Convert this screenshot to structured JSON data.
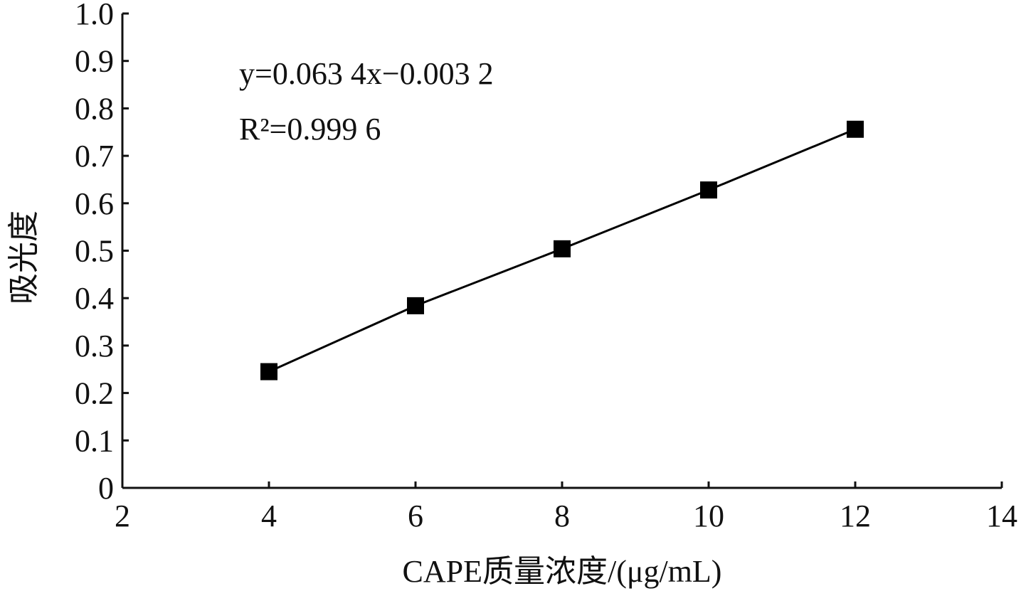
{
  "chart_data": {
    "type": "line",
    "x_label": "CAPE质量浓度/(μg/mL)",
    "y_label": "吸光度",
    "annotations": [
      "y=0.063 4x−0.003 2",
      "R²=0.999 6"
    ],
    "x": [
      4,
      6,
      8,
      10,
      12
    ],
    "values": [
      0.245,
      0.384,
      0.504,
      0.628,
      0.756
    ],
    "color": "#000000",
    "xlim": [
      2,
      14
    ],
    "xticks": [
      2,
      4,
      6,
      8,
      10,
      12,
      14
    ],
    "ylim": [
      0,
      1
    ],
    "yticks": [
      0,
      0.1,
      0.2,
      0.3,
      0.4,
      0.5,
      0.6,
      0.7,
      0.8,
      0.9,
      {
        "value": 1,
        "label": "1.0"
      }
    ]
  }
}
